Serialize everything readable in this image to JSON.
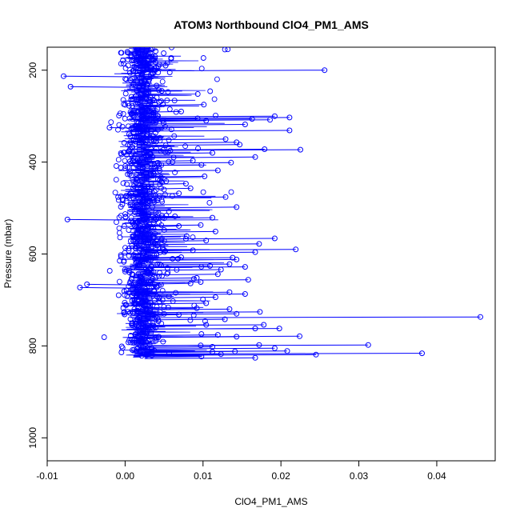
{
  "chart_data": {
    "type": "scatter",
    "title": "ATOM3 Northbound ClO4_PM1_AMS",
    "xlabel": "ClO4_PM1_AMS",
    "ylabel": "Pressure (mbar)",
    "xlim": [
      -0.01,
      0.0475
    ],
    "ylim": [
      1050,
      150
    ],
    "y_reversed": true,
    "grid": false,
    "legend": "none",
    "marker": "open-circle",
    "connected": true,
    "x_ticks": [
      -0.01,
      0.0,
      0.01,
      0.02,
      0.03,
      0.04
    ],
    "x_tick_labels": [
      "-0.01",
      "0.00",
      "0.01",
      "0.02",
      "0.03",
      "0.04"
    ],
    "y_ticks": [
      200,
      400,
      600,
      800,
      1000
    ],
    "y_tick_labels": [
      "200",
      "400",
      "600",
      "800",
      "1000"
    ],
    "colors": {
      "series": "#0000ff",
      "axis": "#000000"
    },
    "series": [
      {
        "x": [
          0.0003,
          0.0052,
          -0.0079,
          0.0031,
          -0.007,
          0.0047,
          0.0008,
          0.0101,
          0.0035,
          0.0256,
          0.0072,
          0.0024,
          0.0015,
          0.0093,
          0.0163,
          0.0104,
          0.0192,
          0.0018,
          -0.002,
          0.0211,
          0.0154,
          0.0186,
          0.0211,
          0.0143,
          0.0058,
          0.0129,
          0.0147,
          0.0112,
          0.0087,
          0.0179,
          0.0098,
          0.0078,
          0.0225,
          0.0167,
          0.0136,
          0.0119,
          0.0102,
          0.0084,
          0.0069,
          0.0129,
          0.0143,
          0.0112,
          0.0097,
          0.0079,
          0.0104,
          0.0087,
          0.0072,
          0.0134,
          0.0154,
          0.0119,
          0.0092,
          0.0084,
          -0.0058,
          -0.0074,
          0.0064,
          0.0069,
          0.0116,
          0.0078,
          0.0172,
          0.0167,
          0.0143,
          0.0123,
          0.0192,
          0.0138,
          0.0109,
          0.0219,
          0.0158,
          0.0134,
          0.0116,
          0.0104,
          0.0092,
          0.0173,
          0.0143,
          0.0128,
          0.0104,
          0.0167,
          -0.0049,
          0.0198,
          0.0178,
          0.0119,
          0.0143,
          0.0097,
          0.0112,
          0.0123,
          0.0098,
          0.0456,
          0.0069,
          0.0154,
          0.0134,
          0.0097,
          0.0224,
          0.0172,
          0.0141,
          0.0192,
          0.0312,
          0.0381,
          0.0245,
          0.0167,
          0.0208,
          0.0112
        ],
        "y": [
          160,
          190,
          213,
          220,
          236,
          245,
          258,
          275,
          285,
          200,
          290,
          300,
          322,
          305,
          306,
          310,
          300,
          320,
          325,
          303,
          318,
          308,
          331,
          357,
          375,
          350,
          362,
          380,
          397,
          372,
          406,
          447,
          373,
          389,
          401,
          418,
          431,
          457,
          468,
          476,
          498,
          521,
          537,
          561,
          571,
          592,
          607,
          622,
          628,
          644,
          652,
          664,
          673,
          525,
          518,
          539,
          551,
          567,
          578,
          596,
          612,
          634,
          566,
          608,
          626,
          590,
          656,
          683,
          694,
          707,
          718,
          726,
          730,
          742,
          754,
          762,
          666,
          762,
          754,
          776,
          780,
          799,
          813,
          818,
          823,
          737,
          732,
          687,
          720,
          661,
          779,
          798,
          812,
          805,
          798,
          816,
          819,
          826,
          811,
          802
        ]
      }
    ]
  }
}
